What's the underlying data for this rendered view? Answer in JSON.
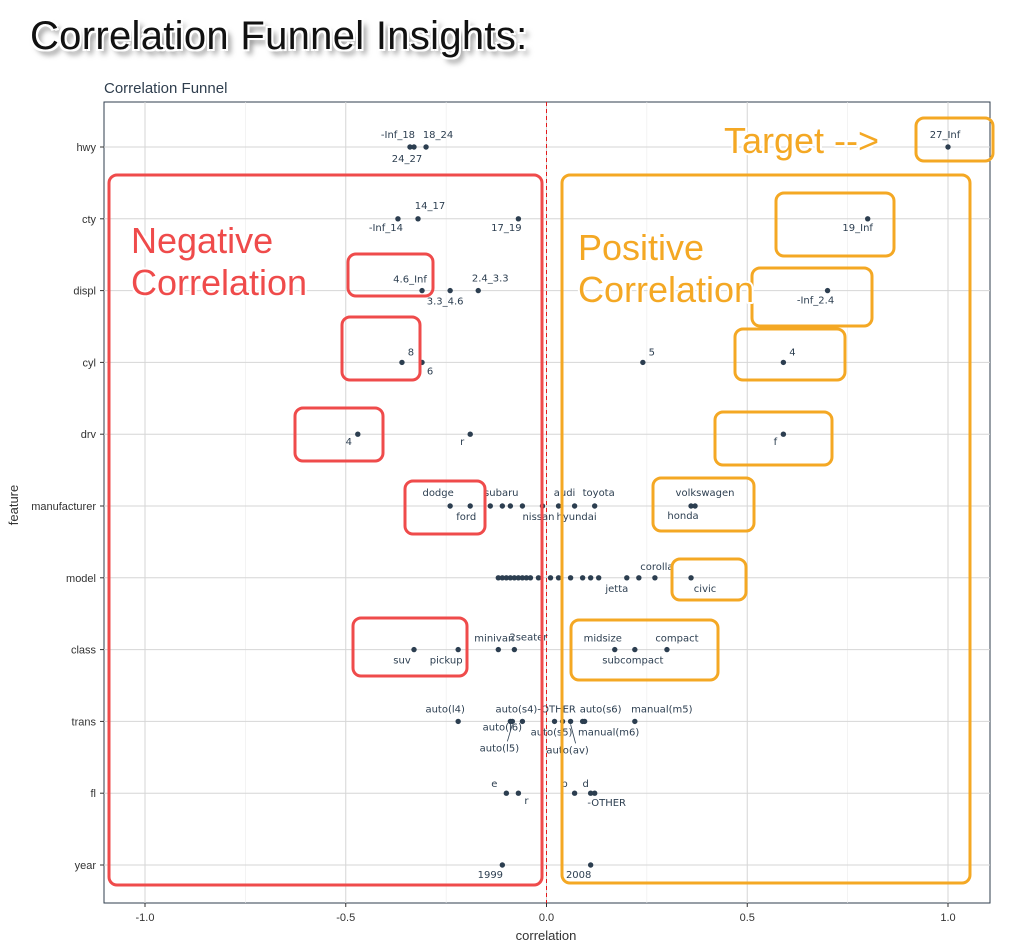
{
  "headline": "Correlation Funnel Insights:",
  "chart_data": {
    "type": "scatter",
    "title": "Correlation Funnel",
    "xlabel": "correlation",
    "ylabel": "feature",
    "xlim": [
      -1.1,
      1.1
    ],
    "x_ticks": [
      "-1.0",
      "-0.5",
      "0.0",
      "0.5",
      "1.0"
    ],
    "x_tick_values": [
      -1.0,
      -0.5,
      0.0,
      0.5,
      1.0
    ],
    "grid": true,
    "zero_line": {
      "x": 0,
      "color": "#e31a1c",
      "style": "dashed"
    },
    "point_color": "#2c3e50",
    "features": [
      "hwy",
      "cty",
      "displ",
      "cyl",
      "drv",
      "manufacturer",
      "model",
      "class",
      "trans",
      "fl",
      "year"
    ],
    "points": [
      {
        "feature": "hwy",
        "x": -0.34,
        "label": "-Inf_18"
      },
      {
        "feature": "hwy",
        "x": -0.33,
        "label": "24_27"
      },
      {
        "feature": "hwy",
        "x": -0.3,
        "label": "18_24"
      },
      {
        "feature": "hwy",
        "x": 1.0,
        "label": "27_Inf"
      },
      {
        "feature": "cty",
        "x": -0.37,
        "label": "-Inf_14"
      },
      {
        "feature": "cty",
        "x": -0.32,
        "label": "14_17"
      },
      {
        "feature": "cty",
        "x": -0.07,
        "label": "17_19"
      },
      {
        "feature": "cty",
        "x": 0.8,
        "label": "19_Inf"
      },
      {
        "feature": "displ",
        "x": -0.31,
        "label": "4.6_Inf"
      },
      {
        "feature": "displ",
        "x": -0.24,
        "label": "3.3_4.6"
      },
      {
        "feature": "displ",
        "x": -0.17,
        "label": "2.4_3.3"
      },
      {
        "feature": "displ",
        "x": 0.7,
        "label": "-Inf_2.4"
      },
      {
        "feature": "cyl",
        "x": -0.36,
        "label": "8"
      },
      {
        "feature": "cyl",
        "x": -0.31,
        "label": "6"
      },
      {
        "feature": "cyl",
        "x": 0.24,
        "label": "5"
      },
      {
        "feature": "cyl",
        "x": 0.59,
        "label": "4"
      },
      {
        "feature": "drv",
        "x": -0.47,
        "label": "4"
      },
      {
        "feature": "drv",
        "x": -0.19,
        "label": "r"
      },
      {
        "feature": "drv",
        "x": 0.59,
        "label": "f"
      },
      {
        "feature": "manufacturer",
        "x": -0.24,
        "label": "dodge"
      },
      {
        "feature": "manufacturer",
        "x": -0.19,
        "label": "ford"
      },
      {
        "feature": "manufacturer",
        "x": -0.14,
        "label": "subaru"
      },
      {
        "feature": "manufacturer",
        "x": -0.11,
        "label": ""
      },
      {
        "feature": "manufacturer",
        "x": -0.09,
        "label": ""
      },
      {
        "feature": "manufacturer",
        "x": -0.06,
        "label": ""
      },
      {
        "feature": "manufacturer",
        "x": -0.01,
        "label": "nissan"
      },
      {
        "feature": "manufacturer",
        "x": 0.03,
        "label": "audi"
      },
      {
        "feature": "manufacturer",
        "x": 0.07,
        "label": "hyundai"
      },
      {
        "feature": "manufacturer",
        "x": 0.12,
        "label": "toyota"
      },
      {
        "feature": "manufacturer",
        "x": 0.36,
        "label": "volkswagen"
      },
      {
        "feature": "manufacturer",
        "x": 0.37,
        "label": "honda"
      },
      {
        "feature": "model",
        "x": -0.12,
        "label": ""
      },
      {
        "feature": "model",
        "x": -0.11,
        "label": ""
      },
      {
        "feature": "model",
        "x": -0.1,
        "label": ""
      },
      {
        "feature": "model",
        "x": -0.09,
        "label": ""
      },
      {
        "feature": "model",
        "x": -0.08,
        "label": ""
      },
      {
        "feature": "model",
        "x": -0.07,
        "label": ""
      },
      {
        "feature": "model",
        "x": -0.06,
        "label": ""
      },
      {
        "feature": "model",
        "x": -0.05,
        "label": ""
      },
      {
        "feature": "model",
        "x": -0.04,
        "label": ""
      },
      {
        "feature": "model",
        "x": -0.02,
        "label": ""
      },
      {
        "feature": "model",
        "x": 0.01,
        "label": ""
      },
      {
        "feature": "model",
        "x": 0.03,
        "label": ""
      },
      {
        "feature": "model",
        "x": 0.06,
        "label": ""
      },
      {
        "feature": "model",
        "x": 0.09,
        "label": ""
      },
      {
        "feature": "model",
        "x": 0.11,
        "label": ""
      },
      {
        "feature": "model",
        "x": 0.13,
        "label": ""
      },
      {
        "feature": "model",
        "x": 0.2,
        "label": "jetta"
      },
      {
        "feature": "model",
        "x": 0.23,
        "label": ""
      },
      {
        "feature": "model",
        "x": 0.27,
        "label": "corolla"
      },
      {
        "feature": "model",
        "x": 0.36,
        "label": "civic"
      },
      {
        "feature": "class",
        "x": -0.33,
        "label": "suv"
      },
      {
        "feature": "class",
        "x": -0.22,
        "label": "pickup"
      },
      {
        "feature": "class",
        "x": -0.12,
        "label": "minivan"
      },
      {
        "feature": "class",
        "x": -0.08,
        "label": "2seater"
      },
      {
        "feature": "class",
        "x": 0.17,
        "label": "midsize"
      },
      {
        "feature": "class",
        "x": 0.22,
        "label": "subcompact"
      },
      {
        "feature": "class",
        "x": 0.3,
        "label": "compact"
      },
      {
        "feature": "trans",
        "x": -0.22,
        "label": "auto(l4)"
      },
      {
        "feature": "trans",
        "x": -0.09,
        "label": "auto(l6)"
      },
      {
        "feature": "trans",
        "x": -0.085,
        "label": "auto(l5)"
      },
      {
        "feature": "trans",
        "x": -0.06,
        "label": "auto(s4)"
      },
      {
        "feature": "trans",
        "x": 0.02,
        "label": "auto(s5)"
      },
      {
        "feature": "trans",
        "x": 0.04,
        "label": "-OTHER"
      },
      {
        "feature": "trans",
        "x": 0.06,
        "label": "auto(av)"
      },
      {
        "feature": "trans",
        "x": 0.09,
        "label": "manual(m6)"
      },
      {
        "feature": "trans",
        "x": 0.095,
        "label": "auto(s6)"
      },
      {
        "feature": "trans",
        "x": 0.22,
        "label": "manual(m5)"
      },
      {
        "feature": "fl",
        "x": -0.1,
        "label": "e"
      },
      {
        "feature": "fl",
        "x": -0.07,
        "label": "r"
      },
      {
        "feature": "fl",
        "x": 0.07,
        "label": "p"
      },
      {
        "feature": "fl",
        "x": 0.11,
        "label": "d"
      },
      {
        "feature": "fl",
        "x": 0.12,
        "label": "-OTHER"
      },
      {
        "feature": "year",
        "x": -0.11,
        "label": "1999"
      },
      {
        "feature": "year",
        "x": 0.11,
        "label": "2008"
      }
    ]
  },
  "annotations": {
    "negative_label_line1": "Negative",
    "negative_label_line2": "Correlation",
    "positive_label_line1": "Positive",
    "positive_label_line2": "Correlation",
    "target_label": "Target -->",
    "negative_color": "#ef4b4b",
    "positive_color": "#f4a824"
  }
}
